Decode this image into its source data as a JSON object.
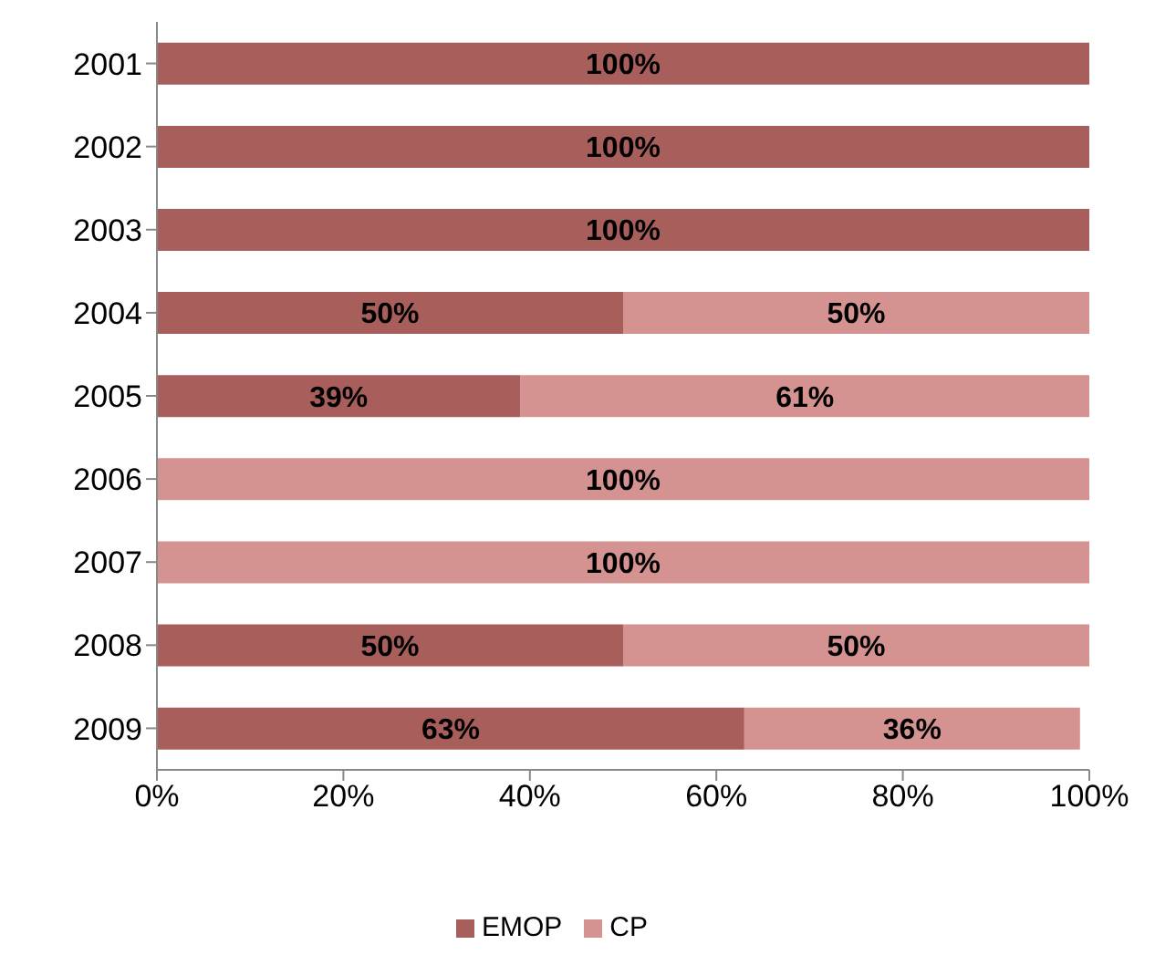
{
  "chart_data": {
    "type": "bar",
    "orientation": "horizontal",
    "stacked": true,
    "categories": [
      "2001",
      "2002",
      "2003",
      "2004",
      "2005",
      "2006",
      "2007",
      "2008",
      "2009"
    ],
    "series": [
      {
        "name": "EMOP",
        "color": "#a85f5c",
        "values": [
          100,
          100,
          100,
          50,
          39,
          null,
          null,
          50,
          63
        ],
        "value_labels": [
          "100%",
          "100%",
          "100%",
          "50%",
          "39%",
          null,
          null,
          "50%",
          "63%"
        ]
      },
      {
        "name": "CP",
        "color": "#d49391",
        "values": [
          null,
          null,
          null,
          50,
          61,
          100,
          100,
          50,
          36
        ],
        "value_labels": [
          null,
          null,
          null,
          "50%",
          "61%",
          "100%",
          "100%",
          "50%",
          "36%"
        ]
      }
    ],
    "xlim": [
      0,
      100
    ],
    "xticks": [
      {
        "value": 0,
        "label": "0%"
      },
      {
        "value": 20,
        "label": "20%"
      },
      {
        "value": 40,
        "label": "40%"
      },
      {
        "value": 60,
        "label": "60%"
      },
      {
        "value": 80,
        "label": "80%"
      },
      {
        "value": 100,
        "label": "100%"
      }
    ],
    "grid": false,
    "legend": "bottom"
  }
}
